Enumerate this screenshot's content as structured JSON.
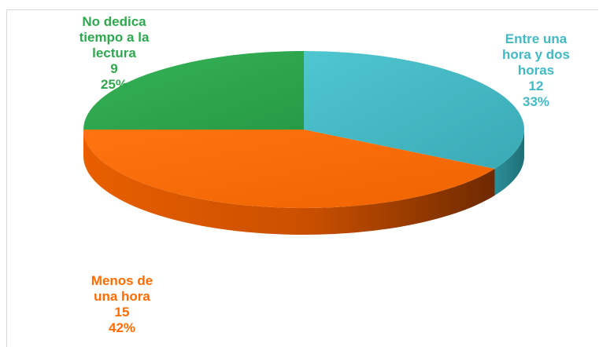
{
  "chart_data": {
    "type": "pie",
    "title": "",
    "three_d": true,
    "categories": [
      "Entre una hora y dos horas",
      "Menos de una hora",
      "No dedica tiempo a la lectura"
    ],
    "values": [
      12,
      15,
      9
    ],
    "percentages": [
      "33%",
      "42%",
      "25%"
    ],
    "colors": [
      "#42b9c4",
      "#ff6c00",
      "#2ea84e"
    ],
    "legend": "none",
    "data_labels": [
      {
        "lines": [
          "Entre una",
          "hora y dos",
          "horas"
        ],
        "value": "12",
        "percent": "33%",
        "color": "#42b9c4"
      },
      {
        "lines": [
          "Menos de",
          "una hora"
        ],
        "value": "15",
        "percent": "42%",
        "color": "#ff6c00"
      },
      {
        "lines": [
          "No dedica",
          "tiempo a la",
          "lectura"
        ],
        "value": "9",
        "percent": "25%",
        "color": "#2ea84e"
      }
    ]
  }
}
